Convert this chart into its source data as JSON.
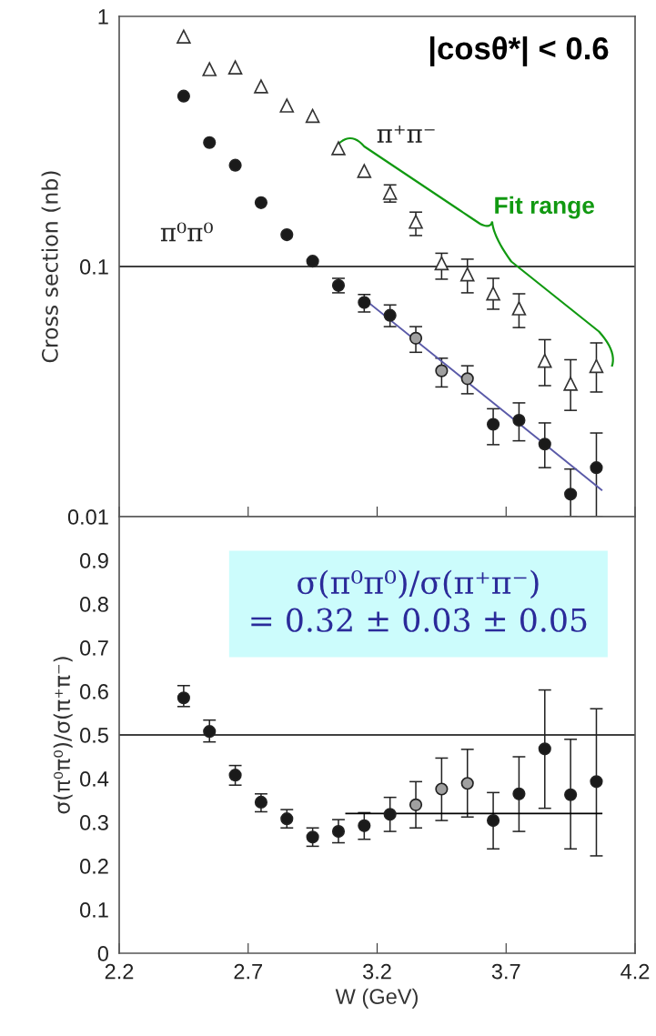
{
  "chart_data": [
    {
      "type": "scatter",
      "ylabel": "Cross section (nb)",
      "log": true,
      "xlim": [
        2.2,
        4.2
      ],
      "ylim": [
        0.01,
        1
      ],
      "xticks": [
        2.2,
        2.7,
        3.2,
        3.7,
        4.2
      ],
      "yticks": [
        0.01,
        0.1,
        1
      ],
      "tick_labels": "y",
      "grid": false,
      "legend": false,
      "annotations": [
        "|cosθ*| < 0.6",
        "Fit range"
      ],
      "ref_lines": [
        {
          "axis": "y",
          "value": 0.1,
          "color": "#000000"
        }
      ],
      "x": [
        2.45,
        2.55,
        2.65,
        2.75,
        2.85,
        2.95,
        3.05,
        3.15,
        3.25,
        3.35,
        3.45,
        3.55,
        3.65,
        3.75,
        3.85,
        3.95,
        4.05
      ],
      "series": [
        {
          "name": "π⁰π⁰",
          "color": "#1a1a1a",
          "marker": "circle",
          "values": [
            0.48,
            0.313,
            0.254,
            0.18,
            0.134,
            0.105,
            0.084,
            0.0718,
            0.0638,
            null,
            null,
            null,
            0.0234,
            0.0243,
            0.0195,
            0.0123,
            0.0157
          ],
          "errors": [
            null,
            null,
            null,
            null,
            null,
            null,
            [
              0.0785,
              0.0897
            ],
            [
              0.0658,
              0.0773
            ],
            [
              0.0575,
              0.0702
            ],
            null,
            null,
            null,
            [
              0.0194,
              0.027
            ],
            [
              0.0201,
              0.0285
            ],
            [
              0.0157,
              0.0237
            ],
            [
              0.01,
              0.0155
            ],
            [
              0.01,
              0.0216
            ]
          ]
        },
        {
          "color": "#a0a0a0",
          "marker": "circle",
          "values": [
            null,
            null,
            null,
            null,
            null,
            null,
            null,
            null,
            null,
            0.0517,
            0.0383,
            0.0356,
            null,
            null,
            null,
            null,
            null
          ],
          "errors": [
            null,
            null,
            null,
            null,
            null,
            null,
            null,
            null,
            null,
            [
              0.0454,
              0.0575
            ],
            [
              0.033,
              0.043
            ],
            [
              0.031,
              0.0401
            ],
            null,
            null,
            null,
            null,
            null
          ]
        },
        {
          "name": "π⁺π⁻",
          "color": "#333333",
          "marker": "triangle",
          "values": [
            0.83,
            0.615,
            0.625,
            0.525,
            0.44,
            0.4,
            0.297,
            0.241,
            0.197,
            0.151,
            0.103,
            0.093,
            0.078,
            0.068,
            0.042,
            0.034,
            0.04
          ],
          "errors": [
            null,
            null,
            null,
            null,
            null,
            null,
            null,
            null,
            [
              0.181,
              0.212
            ],
            [
              0.133,
              0.165
            ],
            [
              0.089,
              0.113
            ],
            [
              0.0785,
              0.107
            ],
            [
              0.0675,
              0.0897
            ],
            [
              0.057,
              0.0778
            ],
            [
              0.0334,
              0.051
            ],
            [
              0.0266,
              0.0424
            ],
            [
              0.0315,
              0.0495
            ]
          ]
        },
        {
          "type": "line",
          "color": "#5a5aa8",
          "x": [
            3.17,
            4.07
          ],
          "values": [
            0.0713,
            0.0128
          ]
        }
      ]
    },
    {
      "type": "scatter",
      "xlabel": "W (GeV)",
      "ylabel": "σ(π⁰π⁰)/σ(π⁺π⁻)",
      "xlim": [
        2.2,
        4.2
      ],
      "ylim": [
        0,
        1
      ],
      "xticks": [
        2.2,
        2.7,
        3.2,
        3.7,
        4.2
      ],
      "yticks": [
        0,
        0.1,
        0.2,
        0.3,
        0.4,
        0.5,
        0.6,
        0.7,
        0.8,
        0.9
      ],
      "grid": false,
      "legend": false,
      "annotations": [
        "σ(π⁰π⁰)/σ(π⁺π⁻)\n= 0.32 ± 0.03 ± 0.05"
      ],
      "ref_lines": [
        {
          "axis": "y",
          "value": 0.5,
          "color": "#000000"
        }
      ],
      "x": [
        2.45,
        2.55,
        2.65,
        2.75,
        2.85,
        2.95,
        3.05,
        3.15,
        3.25,
        3.35,
        3.45,
        3.55,
        3.65,
        3.75,
        3.85,
        3.95,
        4.05
      ],
      "series": [
        {
          "color": "#1a1a1a",
          "marker": "circle",
          "values": [
            0.585,
            0.508,
            0.408,
            0.346,
            0.308,
            0.266,
            0.279,
            0.292,
            0.318,
            null,
            null,
            null,
            0.304,
            0.365,
            0.468,
            0.363,
            0.393
          ],
          "errors": [
            [
              0.565,
              0.613
            ],
            [
              0.484,
              0.534
            ],
            [
              0.385,
              0.43
            ],
            [
              0.324,
              0.365
            ],
            [
              0.287,
              0.329
            ],
            [
              0.245,
              0.287
            ],
            [
              0.253,
              0.306
            ],
            [
              0.261,
              0.322
            ],
            [
              0.279,
              0.357
            ],
            null,
            null,
            null,
            [
              0.239,
              0.368
            ],
            [
              0.279,
              0.45
            ],
            [
              0.332,
              0.603
            ],
            [
              0.239,
              0.49
            ],
            [
              0.223,
              0.56
            ]
          ]
        },
        {
          "color": "#a0a0a0",
          "marker": "circle",
          "values": [
            null,
            null,
            null,
            null,
            null,
            null,
            null,
            null,
            null,
            0.34,
            0.376,
            0.389,
            null,
            null,
            null,
            null,
            null
          ],
          "errors": [
            null,
            null,
            null,
            null,
            null,
            null,
            null,
            null,
            null,
            [
              0.287,
              0.393
            ],
            [
              0.304,
              0.447
            ],
            [
              0.312,
              0.467
            ],
            null,
            null,
            null,
            null,
            null
          ]
        },
        {
          "type": "line",
          "color": "#000000",
          "x": [
            3.08,
            4.07
          ],
          "values": [
            0.32,
            0.32
          ]
        }
      ]
    }
  ]
}
